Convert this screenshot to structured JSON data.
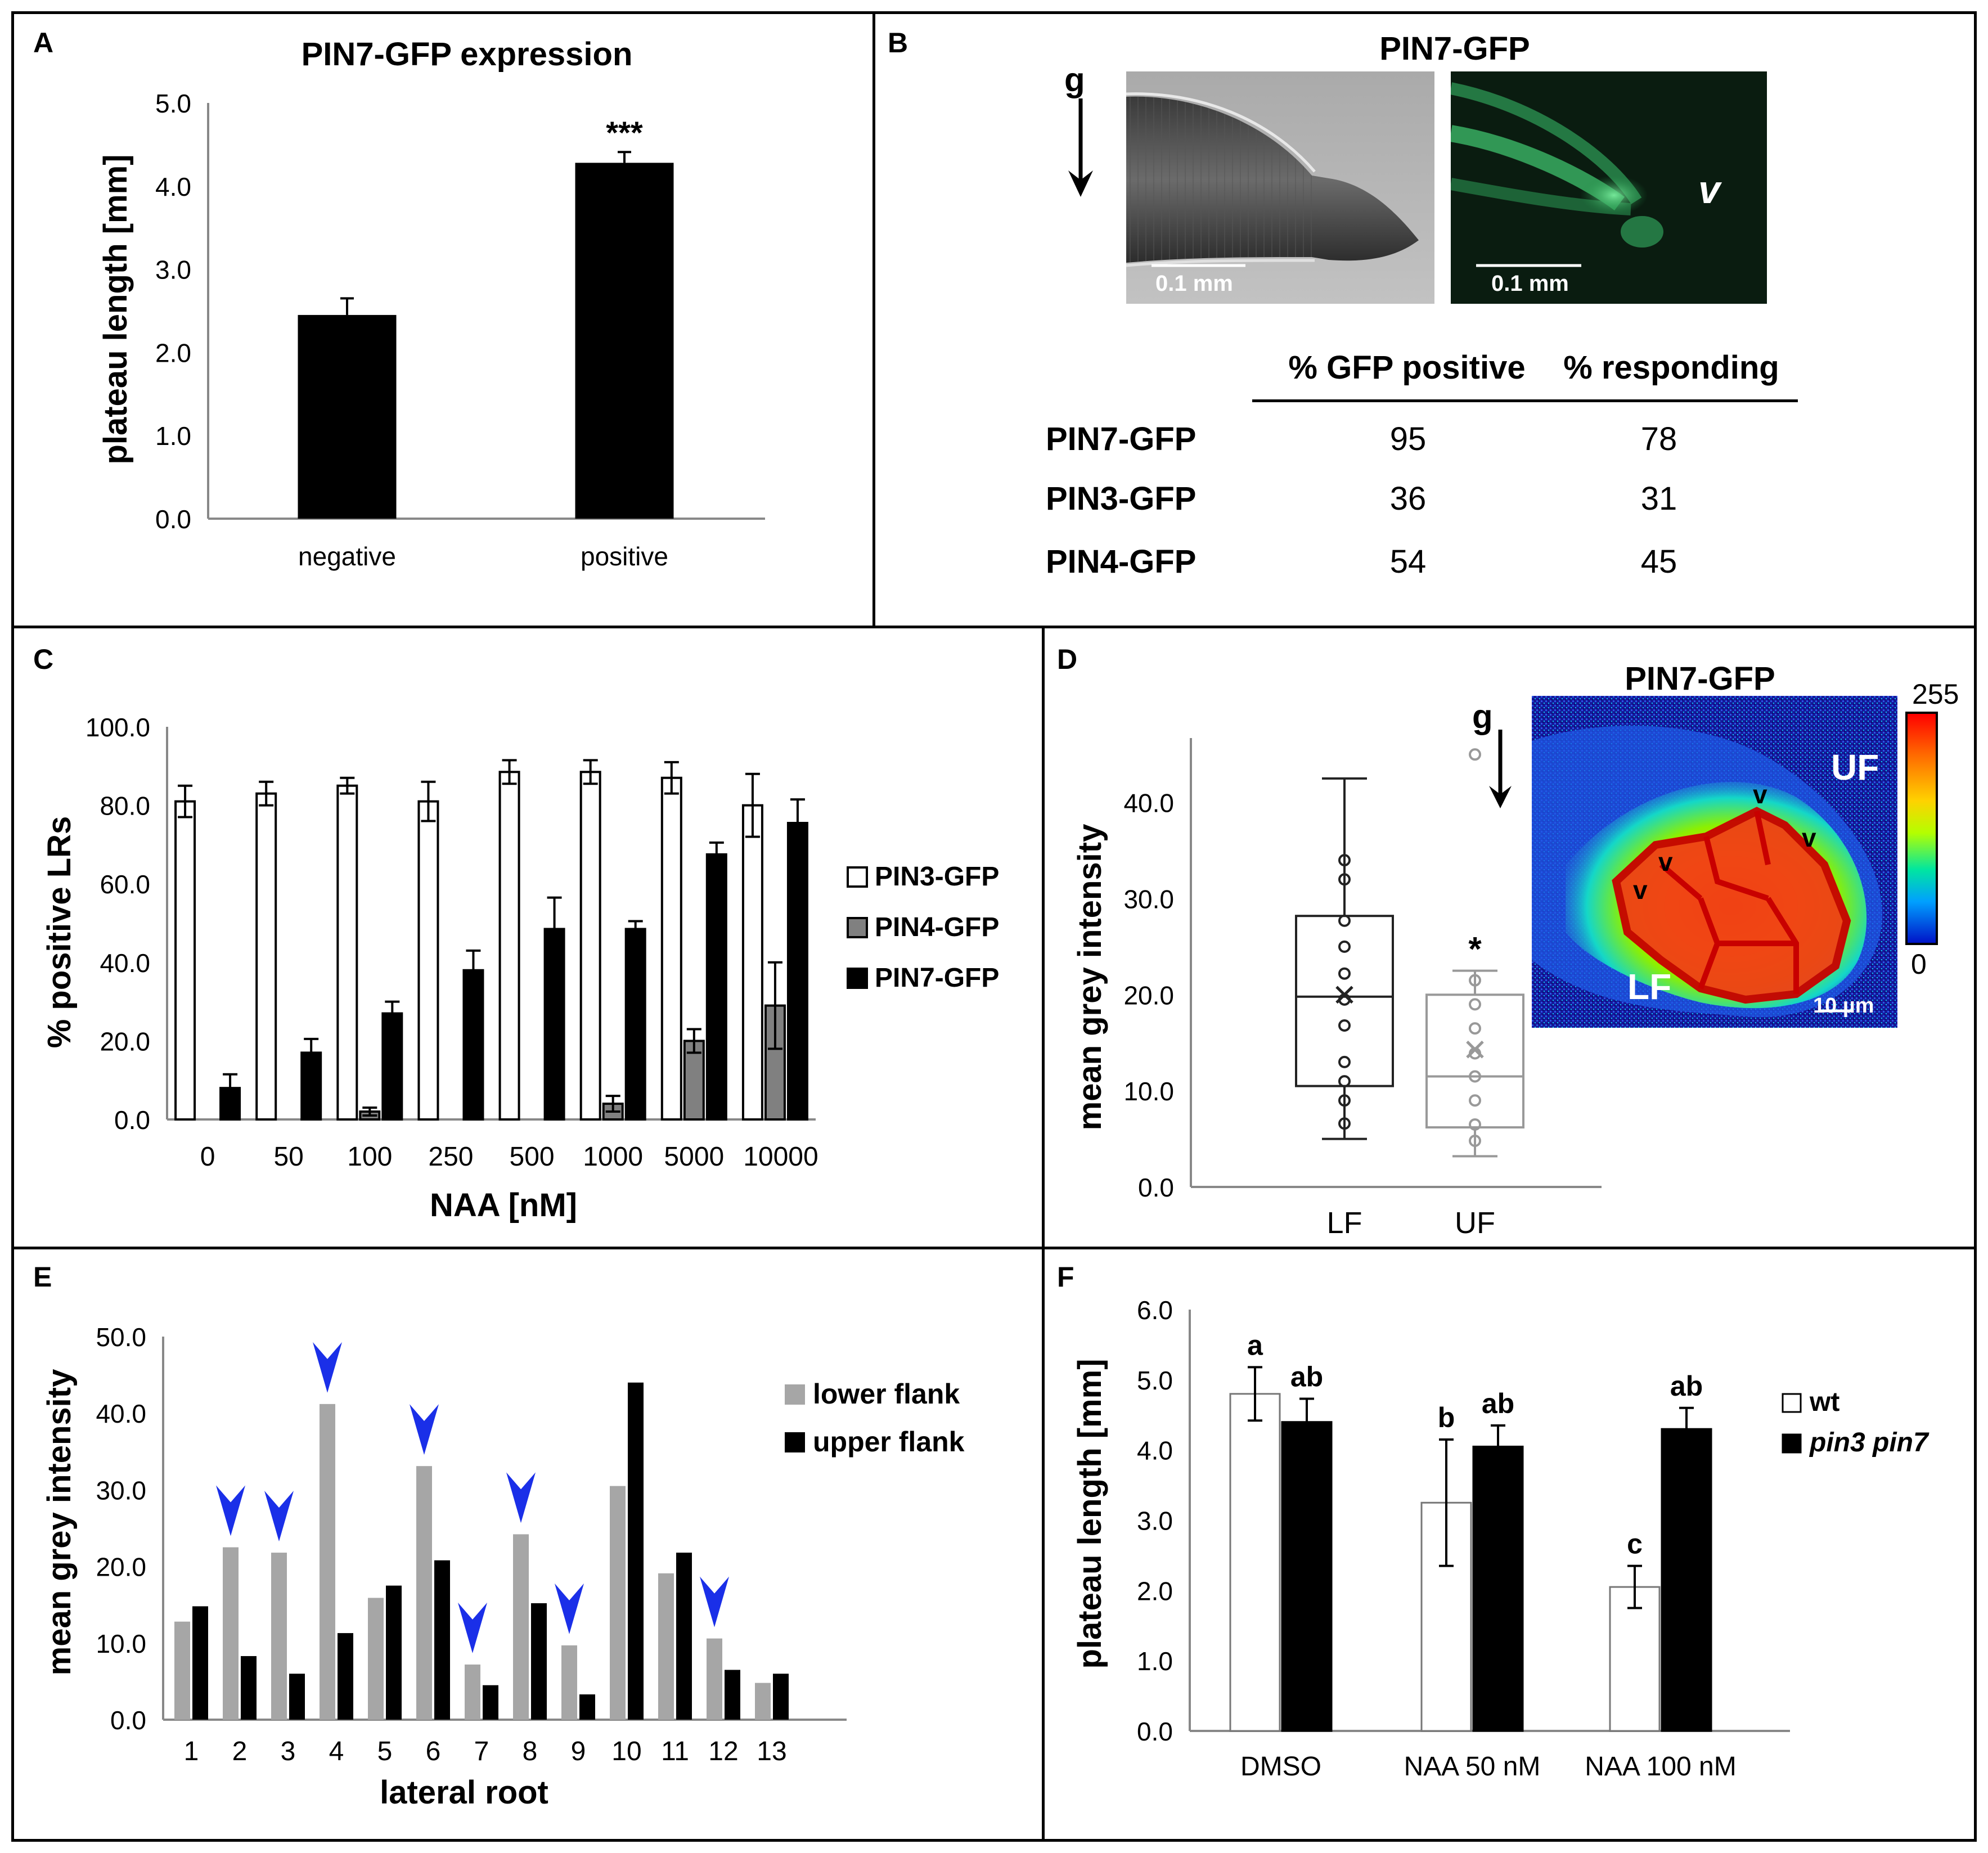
{
  "figure": {
    "panel_a": {
      "label": "A",
      "chart_data": {
        "type": "bar",
        "title": "PIN7-GFP expression",
        "xlabel": "",
        "ylabel": "plateau length [mm]",
        "categories": [
          "negative",
          "positive"
        ],
        "values": [
          2.45,
          4.28
        ],
        "errors": [
          0.2,
          0.13
        ],
        "ylim": [
          0,
          5
        ],
        "yticks": [
          "0.0",
          "1.0",
          "2.0",
          "3.0",
          "4.0",
          "5.0"
        ],
        "annotations": [
          "",
          "***"
        ],
        "colors": [
          "#000000",
          "#000000"
        ]
      }
    },
    "panel_b": {
      "label": "B",
      "title": "PIN7-GFP",
      "gravity_label": "g",
      "scale_bar_brightfield": "0.1 mm",
      "scale_bar_fluorescence": "0.1 mm",
      "arrowhead_label": "v",
      "table": {
        "headers": [
          "% GFP positive",
          "% responding"
        ],
        "rows": [
          {
            "name": "PIN7-GFP",
            "gfp_positive": "95",
            "responding": "78"
          },
          {
            "name": "PIN3-GFP",
            "gfp_positive": "36",
            "responding": "31"
          },
          {
            "name": "PIN4-GFP",
            "gfp_positive": "54",
            "responding": "45"
          }
        ]
      }
    },
    "panel_c": {
      "label": "C",
      "chart_data": {
        "type": "bar",
        "title": "",
        "xlabel": "NAA [nM]",
        "ylabel": "% positive LRs",
        "categories": [
          "0",
          "50",
          "100",
          "250",
          "500",
          "1000",
          "5000",
          "10000"
        ],
        "ylim": [
          0,
          100
        ],
        "yticks": [
          "0.0",
          "20.0",
          "40.0",
          "60.0",
          "80.0",
          "100.0"
        ],
        "series": [
          {
            "name": "PIN3-GFP",
            "color": "#ffffff",
            "values": [
              81,
              83,
              85,
              81,
              88.5,
              88.5,
              87,
              80
            ],
            "errors": [
              4,
              3,
              2,
              5,
              3,
              3,
              4,
              8
            ]
          },
          {
            "name": "PIN4-GFP",
            "color": "#808080",
            "values": [
              0,
              0,
              2,
              0,
              0,
              4,
              20,
              29
            ],
            "errors": [
              0,
              0,
              1,
              0,
              0,
              2,
              3,
              11
            ]
          },
          {
            "name": "PIN7-GFP",
            "color": "#000000",
            "values": [
              8,
              17,
              27,
              38,
              48.5,
              48.5,
              67.5,
              75.5
            ],
            "errors": [
              3.5,
              3.5,
              3,
              5,
              8,
              2,
              3,
              6
            ]
          }
        ]
      }
    },
    "panel_d": {
      "label": "D",
      "title": "PIN7-GFP",
      "gravity_label": "g",
      "colorbar_max": "255",
      "colorbar_min": "0",
      "upper_flank_label": "UF",
      "lower_flank_label": "LF",
      "scale_bar": "10 µm",
      "arrowhead_label": "v",
      "chart_data": {
        "type": "box",
        "title": "",
        "xlabel": "",
        "ylabel": "mean grey intensity",
        "categories": [
          "LF",
          "UF"
        ],
        "ylim": [
          0,
          47
        ],
        "yticks": [
          "0.0",
          "10.0",
          "20.0",
          "30.0",
          "40.0"
        ],
        "boxes": [
          {
            "name": "LF",
            "min": 5,
            "q1": 10.5,
            "median": 19.8,
            "q3": 28.2,
            "max": 42.5,
            "mean": 20,
            "color": "#222222",
            "points": [
              6.6,
              9,
              11,
              13,
              16.8,
              19.5,
              22.2,
              25,
              27.7,
              32,
              34
            ]
          },
          {
            "name": "UF",
            "min": 3.2,
            "q1": 6.2,
            "median": 11.5,
            "q3": 20,
            "max": 22.5,
            "mean": 14.3,
            "color": "#999999",
            "points": [
              4.8,
              6.5,
              9,
              11.5,
              13.9,
              16.5,
              19,
              21.5,
              45
            ]
          }
        ],
        "annotations": [
          "",
          "*"
        ]
      }
    },
    "panel_e": {
      "label": "E",
      "chart_data": {
        "type": "bar",
        "title": "",
        "xlabel": "lateral root",
        "ylabel": "mean grey intensity",
        "categories": [
          "1",
          "2",
          "3",
          "4",
          "5",
          "6",
          "7",
          "8",
          "9",
          "10",
          "11",
          "12",
          "13"
        ],
        "ylim": [
          0,
          50
        ],
        "yticks": [
          "0.0",
          "10.0",
          "20.0",
          "30.0",
          "40.0",
          "50.0"
        ],
        "series": [
          {
            "name": "lower flank",
            "color": "#a6a6a6",
            "values": [
              12.8,
              22.5,
              21.8,
              41.2,
              15.9,
              33.1,
              7.2,
              24.2,
              9.7,
              30.5,
              19.1,
              10.6,
              4.8
            ]
          },
          {
            "name": "upper flank",
            "color": "#000000",
            "values": [
              14.8,
              8.3,
              6,
              11.3,
              17.5,
              20.8,
              4.5,
              15.2,
              3.3,
              44,
              21.8,
              6.5,
              6
            ]
          }
        ],
        "arrowheads_at": [
          "2",
          "3",
          "4",
          "6",
          "7",
          "8",
          "9",
          "12"
        ],
        "arrow_color": "#1a2fe8"
      }
    },
    "panel_f": {
      "label": "F",
      "chart_data": {
        "type": "bar",
        "title": "",
        "xlabel": "",
        "ylabel": "plateau length [mm]",
        "categories": [
          "DMSO",
          "NAA 50 nM",
          "NAA 100 nM"
        ],
        "ylim": [
          0,
          6
        ],
        "yticks": [
          "0.0",
          "1.0",
          "2.0",
          "3.0",
          "4.0",
          "5.0",
          "6.0"
        ],
        "series": [
          {
            "name": "wt",
            "color": "#ffffff",
            "values": [
              4.8,
              3.25,
              2.05
            ],
            "errors": [
              0.38,
              0.9,
              0.3
            ],
            "letters": [
              "a",
              "b",
              "c"
            ]
          },
          {
            "name": "pin3 pin7",
            "color": "#000000",
            "values": [
              4.4,
              4.05,
              4.3
            ],
            "errors": [
              0.33,
              0.3,
              0.3
            ],
            "letters": [
              "ab",
              "ab",
              "ab"
            ]
          }
        ]
      }
    }
  }
}
